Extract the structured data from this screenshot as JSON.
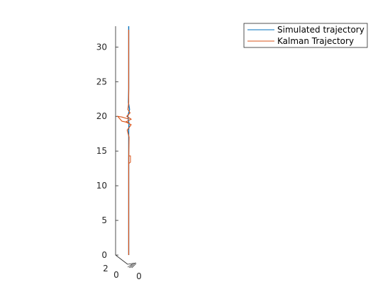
{
  "chart_data": {
    "type": "line",
    "view": "3d",
    "zlim": [
      0,
      33
    ],
    "z_ticks": [
      "0",
      "5",
      "10",
      "15",
      "20",
      "25",
      "30"
    ],
    "y_ticks": [
      "2",
      "0"
    ],
    "x_ticks": [
      "0"
    ],
    "grid": false,
    "legend_placement": "top-right",
    "series": [
      {
        "name": "Simulated trajectory",
        "color": "#0072BD",
        "points": [
          {
            "z": 0
          },
          {
            "z": 4
          },
          {
            "z": 8
          },
          {
            "z": 12
          },
          {
            "z": 16
          },
          {
            "z": 18
          },
          {
            "z": 19
          },
          {
            "z": 20
          },
          {
            "z": 21
          },
          {
            "z": 22
          },
          {
            "z": 24
          },
          {
            "z": 28
          },
          {
            "z": 31
          },
          {
            "z": 33
          }
        ]
      },
      {
        "name": "Kalman Trajectory",
        "color": "#D95319",
        "points": [
          {
            "z": 0
          },
          {
            "z": 3
          },
          {
            "z": 6
          },
          {
            "z": 9
          },
          {
            "z": 12
          },
          {
            "z": 13.5
          },
          {
            "z": 14
          },
          {
            "z": 17
          },
          {
            "z": 18
          },
          {
            "z": 18.8
          },
          {
            "z": 19.2
          },
          {
            "z": 19.6
          },
          {
            "z": 20
          },
          {
            "z": 20.5
          },
          {
            "z": 21
          },
          {
            "z": 22
          },
          {
            "z": 24
          },
          {
            "z": 27
          },
          {
            "z": 30
          },
          {
            "z": 32.5
          }
        ]
      }
    ]
  },
  "legend": {
    "entries": [
      "Simulated trajectory",
      "Kalman Trajectory"
    ]
  }
}
